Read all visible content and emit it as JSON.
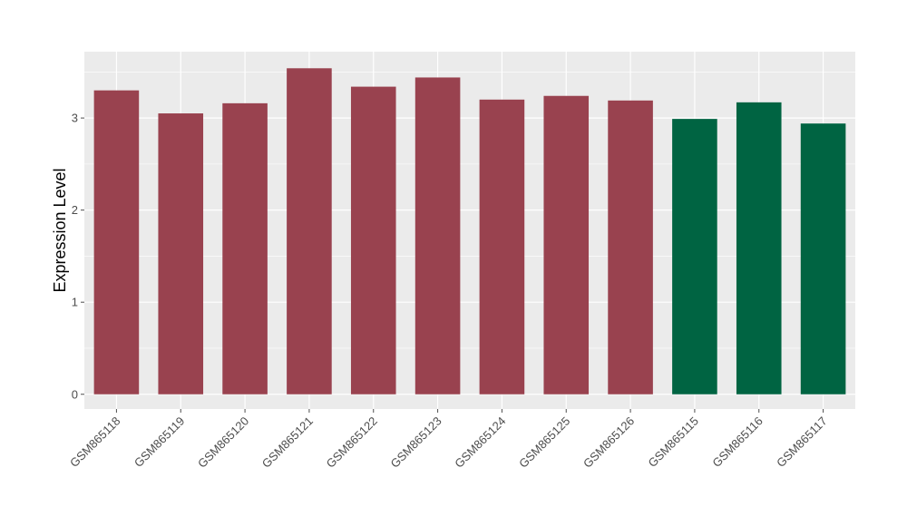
{
  "chart_data": {
    "type": "bar",
    "title": "",
    "xlabel": "",
    "ylabel": "Expression Level",
    "ylim": [
      -0.16,
      3.72
    ],
    "yticks": [
      0,
      1,
      2,
      3
    ],
    "grid": true,
    "legend": "none",
    "categories": [
      "GSM865118",
      "GSM865119",
      "GSM865120",
      "GSM865121",
      "GSM865122",
      "GSM865123",
      "GSM865124",
      "GSM865125",
      "GSM865126",
      "GSM865115",
      "GSM865116",
      "GSM865117"
    ],
    "values": [
      3.3,
      3.05,
      3.16,
      3.54,
      3.34,
      3.44,
      3.2,
      3.24,
      3.19,
      2.99,
      3.17,
      2.94
    ],
    "bar_colors": [
      "#99424f",
      "#99424f",
      "#99424f",
      "#99424f",
      "#99424f",
      "#99424f",
      "#99424f",
      "#99424f",
      "#99424f",
      "#006442",
      "#006442",
      "#006442"
    ],
    "colors": {
      "panel": "#ebebeb",
      "grid": "#ffffff",
      "tick": "#4d4d4d",
      "title": "#000000"
    }
  }
}
